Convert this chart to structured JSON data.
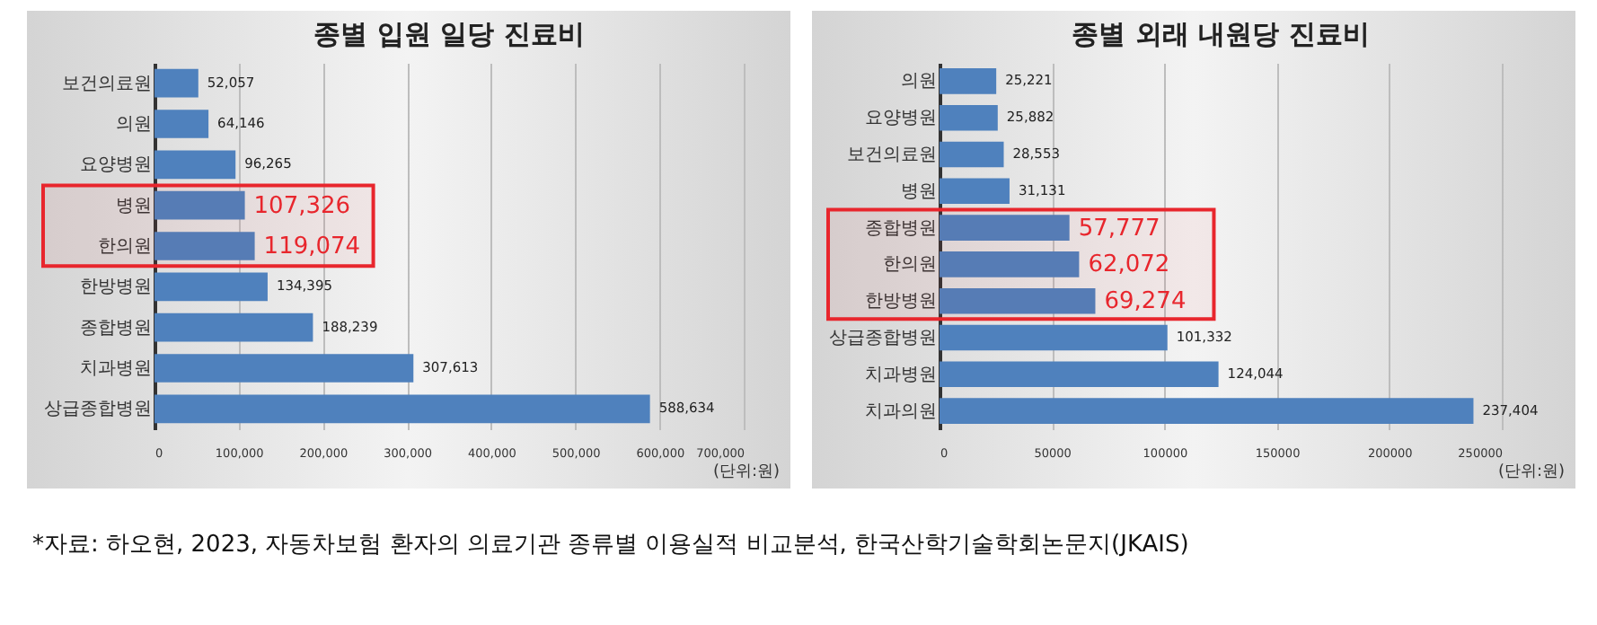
{
  "chart_data": [
    {
      "type": "bar",
      "orientation": "horizontal",
      "title": "종별 입원 일당 진료비",
      "categories": [
        "보건의료원",
        "의원",
        "요양병원",
        "병원",
        "한의원",
        "한방병원",
        "종합병원",
        "치과병원",
        "상급종합병원"
      ],
      "values": [
        52057,
        64146,
        96265,
        107326,
        119074,
        134395,
        188239,
        307613,
        588634
      ],
      "value_labels": [
        "52,057",
        "64,146",
        "96,265",
        "107,326",
        "119,074",
        "134,395",
        "188,239",
        "307,613",
        "588,634"
      ],
      "color": "#4f81bd",
      "xlim": [
        0,
        700000
      ],
      "xticks": [
        0,
        {
          "value": 100000,
          "label": "100,000"
        },
        {
          "value": 200000,
          "label": "200,000"
        },
        {
          "value": 300000,
          "label": "300,000"
        },
        {
          "value": 400000,
          "label": "400,000"
        },
        {
          "value": 500000,
          "label": "500,000"
        },
        {
          "value": 600000,
          "label": "600,000"
        },
        {
          "value": 700000,
          "label": "700,000"
        }
      ],
      "grid": "x",
      "bands": [
        {
          "axis": "y",
          "from": "병원",
          "to": "한의원",
          "color": "#e8262d"
        }
      ],
      "annotations": [
        "(단위:원)"
      ]
    },
    {
      "type": "bar",
      "orientation": "horizontal",
      "title": "종별 외래 내원당 진료비",
      "categories": [
        "의원",
        "요양병원",
        "보건의료원",
        "병원",
        "종합병원",
        "한의원",
        "한방병원",
        "상급종합병원",
        "치과병원",
        "치과의원"
      ],
      "values": [
        25221,
        25882,
        28553,
        31131,
        57777,
        62072,
        69274,
        101332,
        124044,
        237404
      ],
      "value_labels": [
        "25,221",
        "25,882",
        "28,553",
        "31,131",
        "57,777",
        "62,072",
        "69,274",
        "101,332",
        "124,044",
        "237,404"
      ],
      "color": "#4f81bd",
      "xlim": [
        0,
        250000
      ],
      "xticks": [
        0,
        50000,
        100000,
        150000,
        200000,
        250000
      ],
      "grid": "x",
      "bands": [
        {
          "axis": "y",
          "from": "종합병원",
          "to": "한방병원",
          "color": "#e8262d"
        }
      ],
      "annotations": [
        "(단위:원)",
        "*자료: 하오현, 2023, 자동차보험 환자의 의료기관 종류별 이용실적 비교분석, 한국산학기술학회논문지(JKAIS)"
      ]
    }
  ]
}
